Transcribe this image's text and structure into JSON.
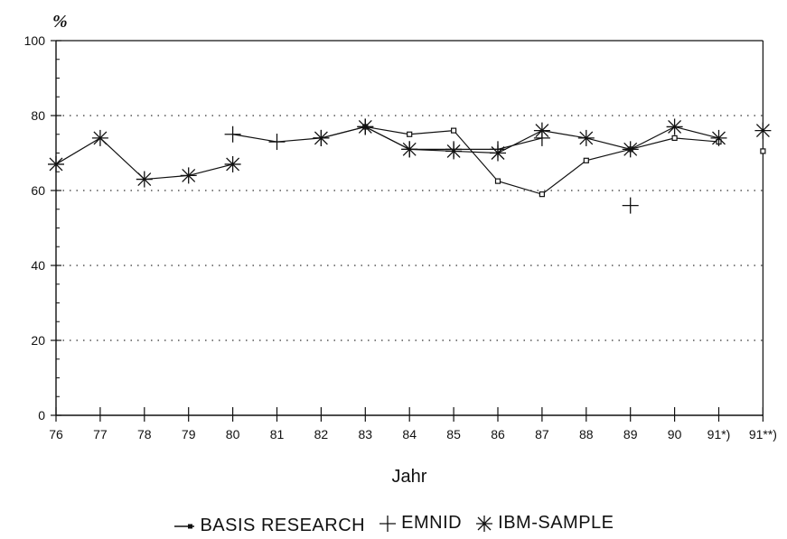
{
  "chart_data": {
    "type": "line",
    "ylabel": "%",
    "xlabel": "Jahr",
    "categories": [
      "76",
      "77",
      "78",
      "79",
      "80",
      "81",
      "82",
      "83",
      "84",
      "85",
      "86",
      "87",
      "88",
      "89",
      "90",
      "91*)",
      "91**)"
    ],
    "ylim": [
      0,
      100
    ],
    "yticks": [
      "0",
      "20",
      "40",
      "60",
      "80",
      "100"
    ],
    "grid": "horizontal dotted at 20, 40, 60, 80",
    "legend_position": "bottom",
    "series": [
      {
        "name": "BASIS RESEARCH",
        "marker": "square",
        "values": [
          null,
          null,
          null,
          null,
          null,
          null,
          null,
          77,
          75,
          76,
          62.5,
          59,
          68,
          71,
          74,
          73,
          70.5
        ]
      },
      {
        "name": "EMNID",
        "marker": "plus",
        "values": [
          null,
          null,
          null,
          null,
          75,
          73,
          74,
          77,
          71,
          71,
          71,
          74,
          null,
          56,
          null,
          null,
          null
        ]
      },
      {
        "name": "IBM-SAMPLE",
        "marker": "asterisk",
        "values": [
          67,
          74,
          63,
          64,
          67,
          null,
          74,
          77,
          71,
          70.5,
          70,
          76,
          74,
          71,
          77,
          74,
          76
        ]
      }
    ]
  }
}
